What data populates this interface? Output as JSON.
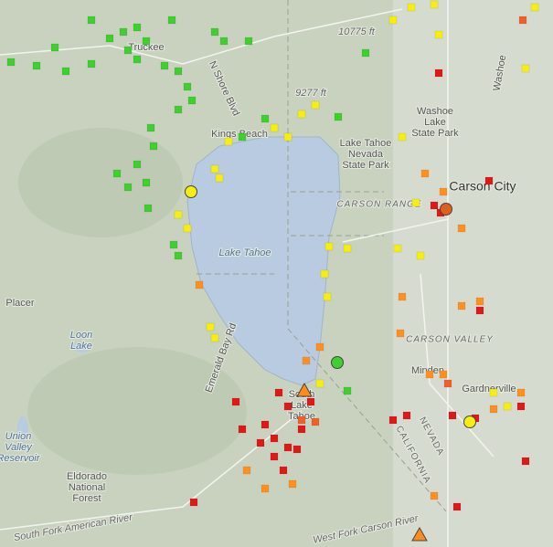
{
  "map": {
    "labels": [
      {
        "text": "Truckee"
      },
      {
        "text": "Kings Beach"
      },
      {
        "text": "Lake Tahoe"
      },
      {
        "text": "Lake Tahoe"
      },
      {
        "text": "Nevada"
      },
      {
        "text": "State Park"
      },
      {
        "text": "Washoe"
      },
      {
        "text": "Lake"
      },
      {
        "text": "State Park"
      },
      {
        "text": "Carson City"
      },
      {
        "text": "CARSON RANGE"
      },
      {
        "text": "CARSON VALLEY"
      },
      {
        "text": "Minden"
      },
      {
        "text": "Gardnerville"
      },
      {
        "text": "South"
      },
      {
        "text": "Lake"
      },
      {
        "text": "Tahoe"
      },
      {
        "text": "NEVADA"
      },
      {
        "text": "CALIFORNIA"
      },
      {
        "text": "Loon"
      },
      {
        "text": "Lake"
      },
      {
        "text": "Union"
      },
      {
        "text": "Valley"
      },
      {
        "text": "Reservoir"
      },
      {
        "text": "Eldorado"
      },
      {
        "text": "National"
      },
      {
        "text": "Forest"
      },
      {
        "text": "Placer"
      },
      {
        "text": "10775 ft"
      },
      {
        "text": "9277 ft"
      },
      {
        "text": "Washoe"
      },
      {
        "text": "N Shore Blvd"
      },
      {
        "text": "Emerald Bay Rd"
      },
      {
        "text": "West Fork Carson River"
      },
      {
        "text": "South Fork American River"
      }
    ]
  }
}
